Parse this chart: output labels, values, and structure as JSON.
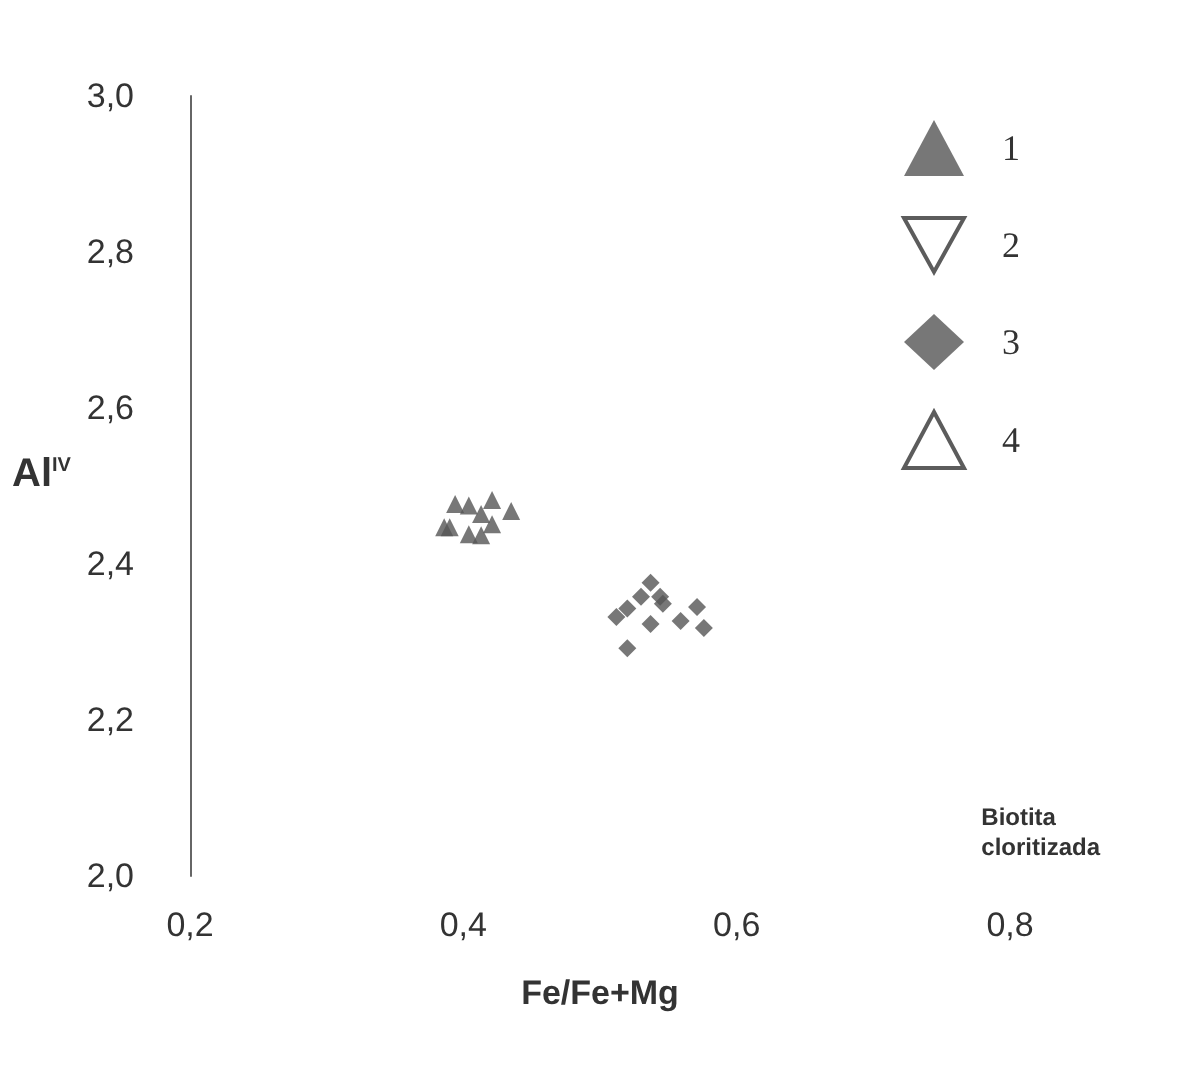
{
  "chart_data": {
    "type": "scatter",
    "xlabel": "Fe/Fe+Mg",
    "ylabel": "Al$^{IV}$",
    "xlim": [
      0.2,
      0.8
    ],
    "xticks": [
      {
        "value": 0.2,
        "label": "0,2"
      },
      {
        "value": 0.4,
        "label": "0,4"
      },
      {
        "value": 0.6,
        "label": "0,6"
      },
      {
        "value": 0.8,
        "label": "0,8"
      }
    ],
    "ylim": [
      2.0,
      3.0
    ],
    "yticks": [
      {
        "value": 2.0,
        "label": "2,0"
      },
      {
        "value": 2.2,
        "label": "2,2"
      },
      {
        "value": 2.4,
        "label": "2,4"
      },
      {
        "value": 2.6,
        "label": "2,6"
      },
      {
        "value": 2.8,
        "label": "2,8"
      },
      {
        "value": 3.0,
        "label": "3,0"
      }
    ],
    "grid": false,
    "legend": "top right",
    "annotations": [
      "Biotita cloritizada"
    ],
    "series": [
      {
        "name": "1",
        "color": "#555555",
        "marker": "triangle",
        "x": [
          0.394,
          0.404,
          0.421,
          0.435,
          0.413,
          0.421,
          0.39,
          0.386,
          0.404,
          0.413
        ],
        "values": [
          2.477,
          2.475,
          2.482,
          2.468,
          2.464,
          2.451,
          2.447,
          2.447,
          2.438,
          2.437
        ]
      },
      {
        "name": "2",
        "color": "#ffffff",
        "marker": "triangle-down"
      },
      {
        "name": "3",
        "color": "#555555",
        "marker": "diamond",
        "x": [
          0.512,
          0.52,
          0.53,
          0.537,
          0.544,
          0.546,
          0.571,
          0.559,
          0.537,
          0.576,
          0.52
        ],
        "values": [
          2.332,
          2.343,
          2.358,
          2.376,
          2.358,
          2.349,
          2.345,
          2.327,
          2.323,
          2.318,
          2.292
        ]
      },
      {
        "name": "4",
        "color": "#ffffff",
        "marker": "triangle"
      }
    ]
  }
}
